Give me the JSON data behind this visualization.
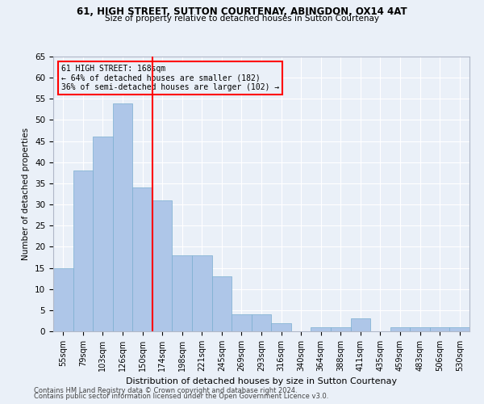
{
  "title1": "61, HIGH STREET, SUTTON COURTENAY, ABINGDON, OX14 4AT",
  "title2": "Size of property relative to detached houses in Sutton Courtenay",
  "xlabel": "Distribution of detached houses by size in Sutton Courtenay",
  "ylabel": "Number of detached properties",
  "footer1": "Contains HM Land Registry data © Crown copyright and database right 2024.",
  "footer2": "Contains public sector information licensed under the Open Government Licence v3.0.",
  "categories": [
    "55sqm",
    "79sqm",
    "103sqm",
    "126sqm",
    "150sqm",
    "174sqm",
    "198sqm",
    "221sqm",
    "245sqm",
    "269sqm",
    "293sqm",
    "316sqm",
    "340sqm",
    "364sqm",
    "388sqm",
    "411sqm",
    "435sqm",
    "459sqm",
    "483sqm",
    "506sqm",
    "530sqm"
  ],
  "values": [
    15,
    38,
    46,
    54,
    34,
    31,
    18,
    18,
    13,
    4,
    4,
    2,
    0,
    1,
    1,
    3,
    0,
    1,
    1,
    1,
    1
  ],
  "bar_color": "#aec6e8",
  "bar_edgecolor": "#7aaed0",
  "bg_color": "#eaf0f8",
  "grid_color": "#ffffff",
  "vline_x": 4.5,
  "vline_color": "red",
  "annotation_text": "61 HIGH STREET: 168sqm\n← 64% of detached houses are smaller (182)\n36% of semi-detached houses are larger (102) →",
  "box_color": "red",
  "ylim": [
    0,
    65
  ],
  "yticks": [
    0,
    5,
    10,
    15,
    20,
    25,
    30,
    35,
    40,
    45,
    50,
    55,
    60,
    65
  ]
}
